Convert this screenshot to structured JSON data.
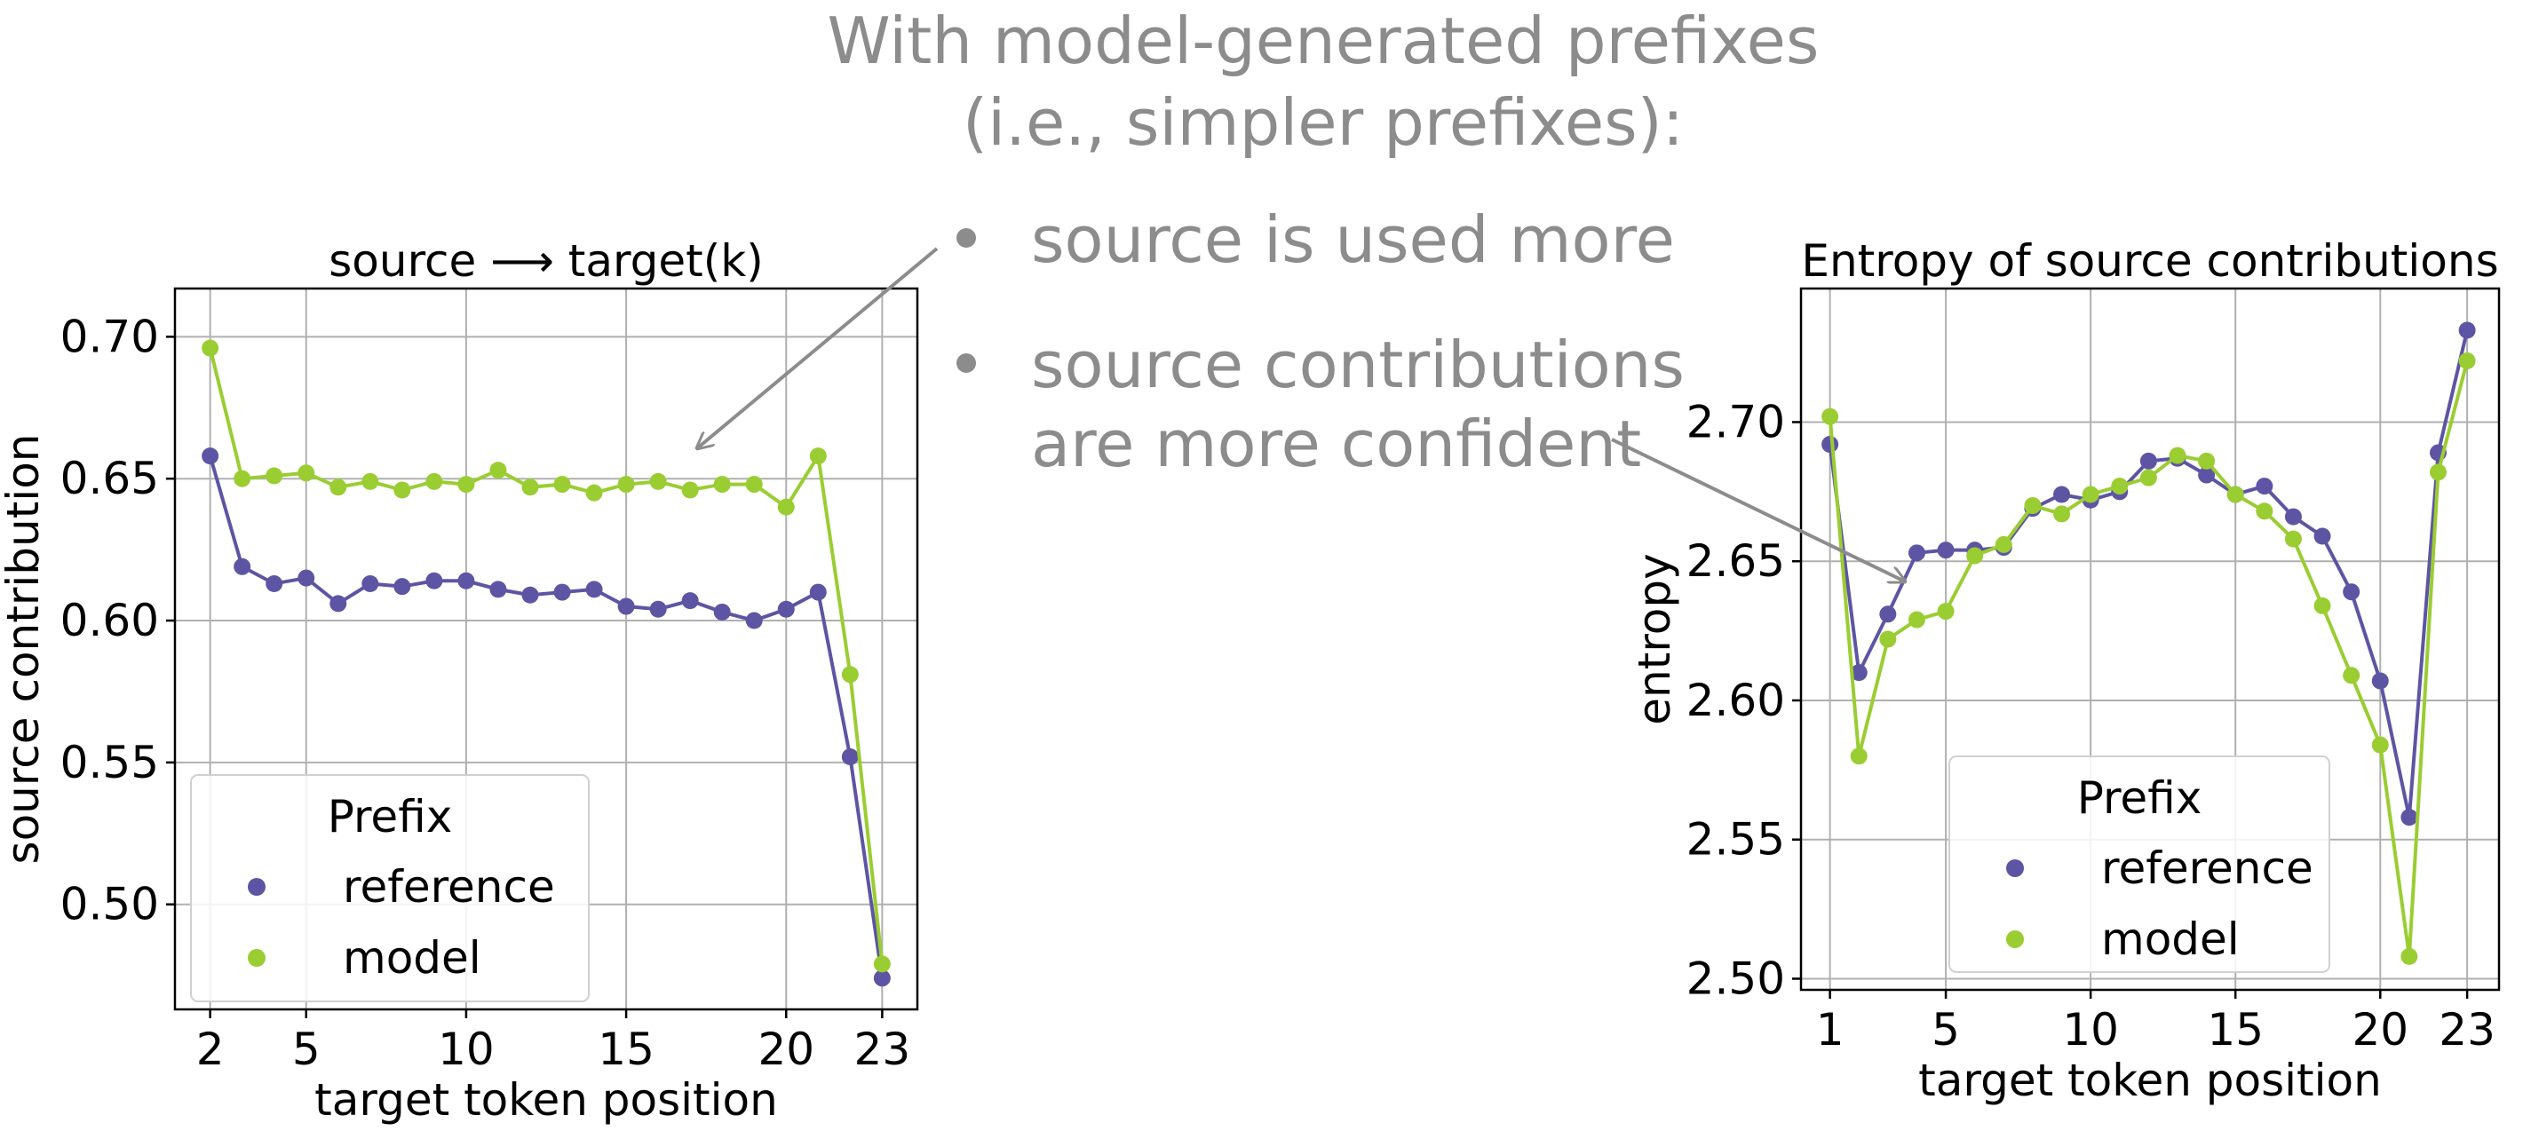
{
  "headline": {
    "line1": "With model-generated prefixes",
    "line2": "(i.e., simpler prefixes):"
  },
  "bullets": [
    "source is used more",
    "source contributions",
    "are more confident"
  ],
  "colors": {
    "reference": "#5d55a3",
    "model": "#9acd32",
    "annotation": "#8c8c8c"
  },
  "chart_data": [
    {
      "type": "line",
      "title": "source ⟶ target(k)",
      "xlabel": "target token position",
      "ylabel": "source contribution",
      "xticks": [
        2,
        5,
        10,
        15,
        20,
        23
      ],
      "yticks": [
        0.5,
        0.55,
        0.6,
        0.65,
        0.7
      ],
      "ytick_labels": [
        "0.50",
        "0.55",
        "0.60",
        "0.65",
        "0.70"
      ],
      "xlim": [
        0.9,
        24.1
      ],
      "ylim": [
        0.463,
        0.717
      ],
      "grid": true,
      "legend": {
        "title": "Prefix",
        "placement": "lower-left"
      },
      "x": [
        2,
        3,
        4,
        5,
        6,
        7,
        8,
        9,
        10,
        11,
        12,
        13,
        14,
        15,
        16,
        17,
        18,
        19,
        20,
        21,
        22,
        23
      ],
      "series": [
        {
          "name": "reference",
          "color": "#5d55a3",
          "values": [
            0.658,
            0.619,
            0.613,
            0.615,
            0.606,
            0.613,
            0.612,
            0.614,
            0.614,
            0.611,
            0.609,
            0.61,
            0.611,
            0.605,
            0.604,
            0.607,
            0.603,
            0.6,
            0.604,
            0.61,
            0.552,
            0.474
          ]
        },
        {
          "name": "model",
          "color": "#9acd32",
          "values": [
            0.696,
            0.65,
            0.651,
            0.652,
            0.647,
            0.649,
            0.646,
            0.649,
            0.648,
            0.653,
            0.647,
            0.648,
            0.645,
            0.648,
            0.649,
            0.646,
            0.648,
            0.648,
            0.64,
            0.658,
            0.581,
            0.479
          ]
        }
      ]
    },
    {
      "type": "line",
      "title": "Entropy of source contributions",
      "xlabel": "target token position",
      "ylabel": "entropy",
      "xticks": [
        1,
        5,
        10,
        15,
        20,
        23
      ],
      "yticks": [
        2.5,
        2.55,
        2.6,
        2.65,
        2.7
      ],
      "ytick_labels": [
        "2.50",
        "2.55",
        "2.60",
        "2.65",
        "2.70"
      ],
      "xlim": [
        0.0,
        24.1
      ],
      "ylim": [
        2.496,
        2.748
      ],
      "grid": true,
      "legend": {
        "title": "Prefix",
        "placement": "lower-center"
      },
      "x": [
        1,
        2,
        3,
        4,
        5,
        6,
        7,
        8,
        9,
        10,
        11,
        12,
        13,
        14,
        15,
        16,
        17,
        18,
        19,
        20,
        21,
        22,
        23
      ],
      "series": [
        {
          "name": "reference",
          "color": "#5d55a3",
          "values": [
            2.692,
            2.61,
            2.631,
            2.653,
            2.654,
            2.654,
            2.655,
            2.669,
            2.674,
            2.672,
            2.675,
            2.686,
            2.687,
            2.681,
            2.674,
            2.677,
            2.666,
            2.659,
            2.639,
            2.607,
            2.558,
            2.689,
            2.733
          ]
        },
        {
          "name": "model",
          "color": "#9acd32",
          "values": [
            2.702,
            2.58,
            2.622,
            2.629,
            2.632,
            2.652,
            2.656,
            2.67,
            2.667,
            2.674,
            2.677,
            2.68,
            2.688,
            2.686,
            2.674,
            2.668,
            2.658,
            2.634,
            2.609,
            2.584,
            2.508,
            2.682,
            2.722
          ]
        }
      ]
    }
  ]
}
